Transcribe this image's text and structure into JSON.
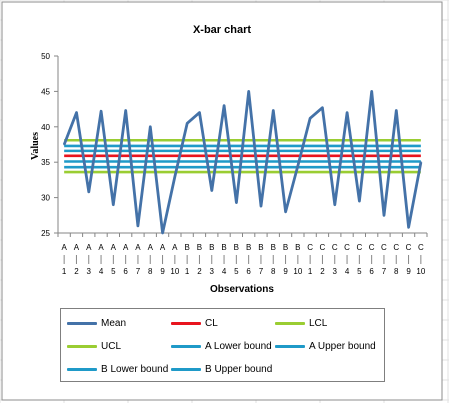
{
  "chart_data": {
    "type": "line",
    "title": "X-bar chart",
    "xlabel": "Observations",
    "ylabel": "Values",
    "ylim": [
      25,
      50
    ],
    "yticks": [
      25,
      30,
      35,
      40,
      45,
      50
    ],
    "grid": false,
    "legend_position": "bottom",
    "categories": [
      {
        "group": "A",
        "num": "1"
      },
      {
        "group": "A",
        "num": "2"
      },
      {
        "group": "A",
        "num": "3"
      },
      {
        "group": "A",
        "num": "4"
      },
      {
        "group": "A",
        "num": "5"
      },
      {
        "group": "A",
        "num": "6"
      },
      {
        "group": "A",
        "num": "7"
      },
      {
        "group": "A",
        "num": "8"
      },
      {
        "group": "A",
        "num": "9"
      },
      {
        "group": "A",
        "num": "10"
      },
      {
        "group": "B",
        "num": "1"
      },
      {
        "group": "B",
        "num": "2"
      },
      {
        "group": "B",
        "num": "3"
      },
      {
        "group": "B",
        "num": "4"
      },
      {
        "group": "B",
        "num": "5"
      },
      {
        "group": "B",
        "num": "6"
      },
      {
        "group": "B",
        "num": "7"
      },
      {
        "group": "B",
        "num": "8"
      },
      {
        "group": "B",
        "num": "9"
      },
      {
        "group": "B",
        "num": "10"
      },
      {
        "group": "C",
        "num": "1"
      },
      {
        "group": "C",
        "num": "2"
      },
      {
        "group": "C",
        "num": "3"
      },
      {
        "group": "C",
        "num": "4"
      },
      {
        "group": "C",
        "num": "5"
      },
      {
        "group": "C",
        "num": "6"
      },
      {
        "group": "C",
        "num": "7"
      },
      {
        "group": "C",
        "num": "8"
      },
      {
        "group": "C",
        "num": "9"
      },
      {
        "group": "C",
        "num": "10"
      }
    ],
    "series": [
      {
        "name": "Mean",
        "kind": "line",
        "color": "#4472a8",
        "values": [
          37.5,
          42,
          30.8,
          42.2,
          29,
          42.3,
          26,
          40,
          25,
          33,
          40.5,
          42,
          31,
          43,
          29.3,
          45,
          28.8,
          42.3,
          28,
          34.5,
          41.2,
          42.7,
          29,
          42,
          29.5,
          45,
          27.5,
          42.3,
          25.8,
          35
        ]
      },
      {
        "name": "CL",
        "kind": "constant",
        "color": "#e8141e",
        "value": 35.9
      },
      {
        "name": "LCL",
        "kind": "constant",
        "color": "#9acd32",
        "value": 33.6
      },
      {
        "name": "UCL",
        "kind": "constant",
        "color": "#9acd32",
        "value": 38.1
      },
      {
        "name": "A Lower bound",
        "kind": "constant",
        "color": "#1f9ac8",
        "value": 34.3
      },
      {
        "name": "A Upper bound",
        "kind": "constant",
        "color": "#1f9ac8",
        "value": 37.3
      },
      {
        "name": "B Lower bound",
        "kind": "constant",
        "color": "#1f9ac8",
        "value": 35.1
      },
      {
        "name": "B Upper bound",
        "kind": "constant",
        "color": "#1f9ac8",
        "value": 36.6
      }
    ],
    "legend": {
      "rows": [
        [
          "Mean",
          "CL",
          "LCL"
        ],
        [
          "UCL",
          "A Lower bound",
          "A Upper bound"
        ],
        [
          "B Lower bound",
          "B Upper bound"
        ]
      ]
    }
  }
}
